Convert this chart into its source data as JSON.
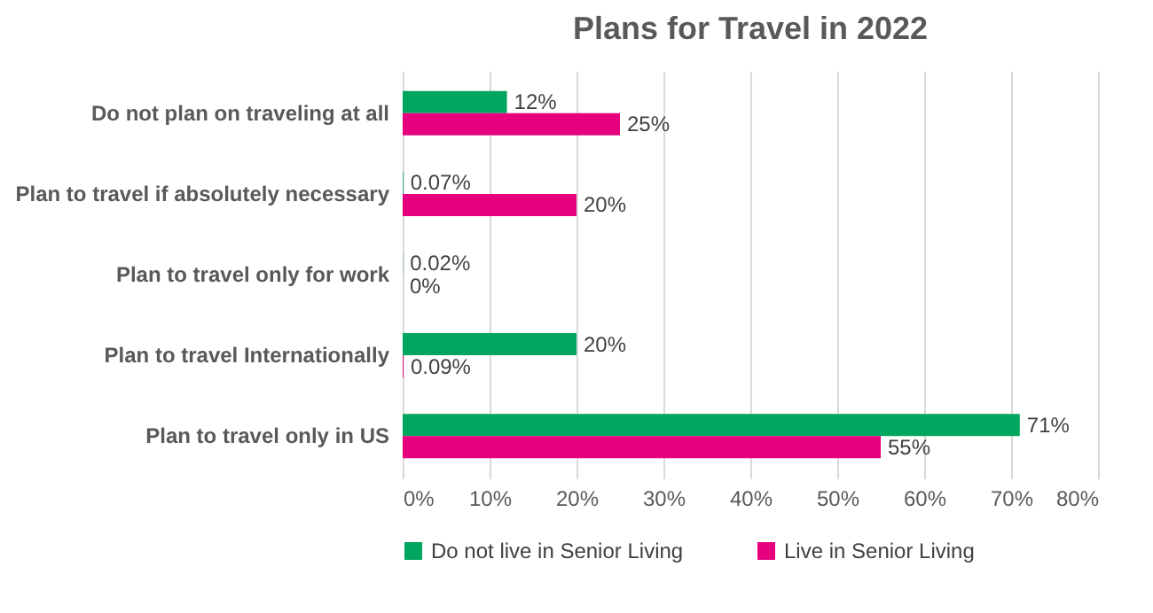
{
  "chart_data": {
    "type": "bar",
    "orientation": "horizontal",
    "title": "Plans for Travel in 2022",
    "categories": [
      "Do not plan on traveling at all",
      "Plan to travel if absolutely necessary",
      "Plan to travel only for work",
      "Plan to travel Internationally",
      "Plan to travel only in US"
    ],
    "series": [
      {
        "name": "Do not live in Senior Living",
        "color": "#00a65d",
        "values": [
          12,
          0.07,
          0.02,
          20,
          71
        ],
        "value_labels": [
          "12%",
          "0.07%",
          "0.02%",
          "20%",
          "71%"
        ]
      },
      {
        "name": "Live in Senior Living",
        "color": "#e6007e",
        "values": [
          25,
          20,
          0,
          0.09,
          55
        ],
        "value_labels": [
          "25%",
          "20%",
          "0%",
          "0.09%",
          "55%"
        ]
      }
    ],
    "xlim": [
      0,
      80
    ],
    "xticks": [
      {
        "value": 0,
        "label": "0%"
      },
      {
        "value": 10,
        "label": "10%"
      },
      {
        "value": 20,
        "label": "20%"
      },
      {
        "value": 30,
        "label": "30%"
      },
      {
        "value": 40,
        "label": "40%"
      },
      {
        "value": 50,
        "label": "50%"
      },
      {
        "value": 60,
        "label": "60%"
      },
      {
        "value": 70,
        "label": "70%"
      },
      {
        "value": 80,
        "label": "80%"
      }
    ],
    "grid": "x",
    "legend": "bottom"
  }
}
